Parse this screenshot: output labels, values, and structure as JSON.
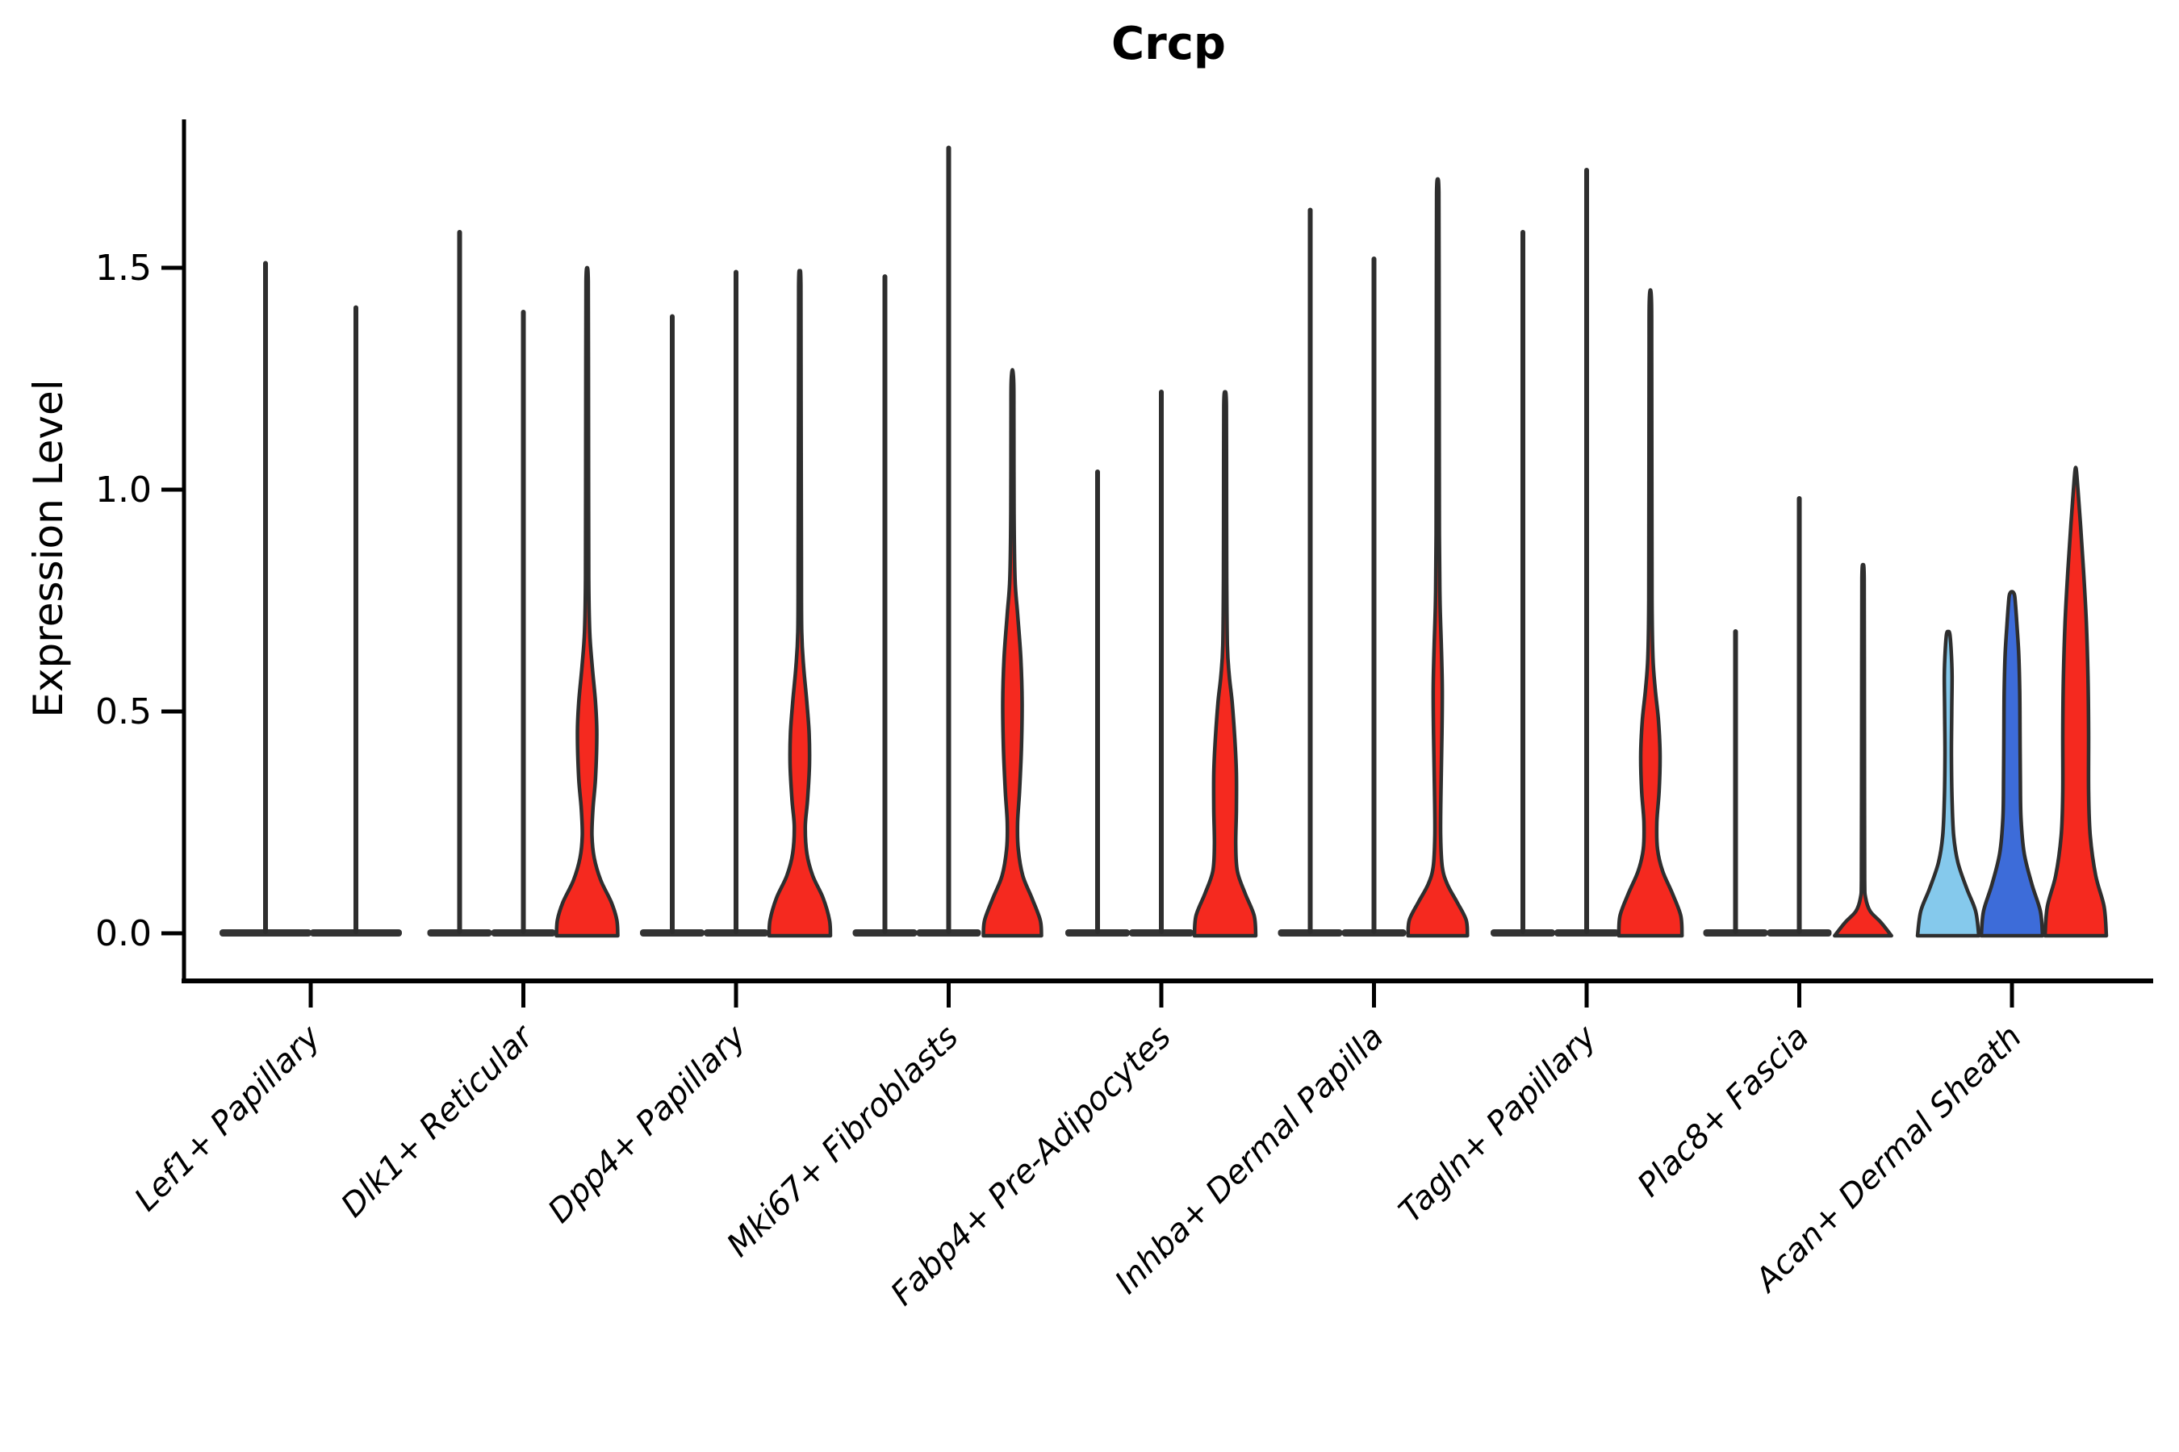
{
  "chart_data": {
    "type": "violin",
    "title": "Crcp",
    "ylabel": "Expression Level",
    "xlabel": "",
    "grid": false,
    "legend_position": "none",
    "ylim": [
      -0.105,
      1.835
    ],
    "y_ticks": [
      {
        "value": 0.0,
        "label": "0.0"
      },
      {
        "value": 0.5,
        "label": "0.5"
      },
      {
        "value": 1.0,
        "label": "1.0"
      },
      {
        "value": 1.5,
        "label": "1.5"
      }
    ],
    "colors": {
      "light_blue": "#85C9EC",
      "blue": "#3D6CD9",
      "red": "#F5291F",
      "outline": "#2E2E2E",
      "axis": "#000000"
    },
    "categories": [
      {
        "label": "Lef1+ Papillary",
        "violins": [
          {
            "group": "light_blue",
            "shape": "line",
            "max": 1.51
          },
          {
            "group": "blue",
            "shape": "line",
            "max": 1.41
          }
        ]
      },
      {
        "label": "Dlk1+ Reticular",
        "violins": [
          {
            "group": "light_blue",
            "shape": "line",
            "max": 1.58
          },
          {
            "group": "blue",
            "shape": "line",
            "max": 1.4
          },
          {
            "group": "red",
            "shape": "curve",
            "max": 1.5,
            "profile": [
              [
                0,
                0.95
              ],
              [
                0.03,
                0.92
              ],
              [
                0.07,
                0.75
              ],
              [
                0.12,
                0.42
              ],
              [
                0.17,
                0.22
              ],
              [
                0.22,
                0.15
              ],
              [
                0.28,
                0.18
              ],
              [
                0.35,
                0.26
              ],
              [
                0.45,
                0.3
              ],
              [
                0.52,
                0.26
              ],
              [
                0.6,
                0.16
              ],
              [
                0.68,
                0.08
              ],
              [
                0.8,
                0.05
              ],
              [
                1.0,
                0.045
              ],
              [
                1.3,
                0.04
              ],
              [
                1.47,
                0.035
              ],
              [
                1.5,
                0
              ]
            ]
          }
        ]
      },
      {
        "label": "Dpp4+ Papillary",
        "violins": [
          {
            "group": "light_blue",
            "shape": "line",
            "max": 1.39
          },
          {
            "group": "blue",
            "shape": "line",
            "max": 1.49
          },
          {
            "group": "red",
            "shape": "curve",
            "max": 1.49,
            "profile": [
              [
                0,
                0.95
              ],
              [
                0.03,
                0.92
              ],
              [
                0.08,
                0.72
              ],
              [
                0.13,
                0.4
              ],
              [
                0.18,
                0.22
              ],
              [
                0.24,
                0.17
              ],
              [
                0.3,
                0.24
              ],
              [
                0.38,
                0.3
              ],
              [
                0.45,
                0.29
              ],
              [
                0.52,
                0.22
              ],
              [
                0.6,
                0.12
              ],
              [
                0.68,
                0.06
              ],
              [
                0.85,
                0.05
              ],
              [
                1.2,
                0.04
              ],
              [
                1.46,
                0.035
              ],
              [
                1.49,
                0
              ]
            ]
          }
        ]
      },
      {
        "label": "Mki67+ Fibroblasts",
        "violins": [
          {
            "group": "light_blue",
            "shape": "line",
            "max": 1.48
          },
          {
            "group": "blue",
            "shape": "line",
            "max": 1.77
          },
          {
            "group": "red",
            "shape": "curve",
            "max": 1.27,
            "profile": [
              [
                0,
                0.9
              ],
              [
                0.03,
                0.86
              ],
              [
                0.08,
                0.6
              ],
              [
                0.13,
                0.32
              ],
              [
                0.19,
                0.18
              ],
              [
                0.25,
                0.16
              ],
              [
                0.32,
                0.22
              ],
              [
                0.42,
                0.28
              ],
              [
                0.52,
                0.3
              ],
              [
                0.62,
                0.26
              ],
              [
                0.72,
                0.16
              ],
              [
                0.8,
                0.08
              ],
              [
                0.95,
                0.05
              ],
              [
                1.15,
                0.045
              ],
              [
                1.24,
                0.04
              ],
              [
                1.27,
                0
              ]
            ]
          }
        ]
      },
      {
        "label": "Fabp4+ Pre-Adipocytes",
        "violins": [
          {
            "group": "light_blue",
            "shape": "line",
            "max": 1.04
          },
          {
            "group": "blue",
            "shape": "line",
            "max": 1.22
          },
          {
            "group": "red",
            "shape": "curve",
            "max": 1.22,
            "profile": [
              [
                0,
                0.95
              ],
              [
                0.04,
                0.9
              ],
              [
                0.09,
                0.62
              ],
              [
                0.14,
                0.38
              ],
              [
                0.2,
                0.33
              ],
              [
                0.28,
                0.35
              ],
              [
                0.36,
                0.35
              ],
              [
                0.44,
                0.3
              ],
              [
                0.52,
                0.22
              ],
              [
                0.58,
                0.13
              ],
              [
                0.65,
                0.07
              ],
              [
                0.8,
                0.05
              ],
              [
                1.0,
                0.045
              ],
              [
                1.19,
                0.04
              ],
              [
                1.22,
                0
              ]
            ]
          }
        ]
      },
      {
        "label": "Inhba+ Dermal Papilla",
        "violins": [
          {
            "group": "light_blue",
            "shape": "line",
            "max": 1.63
          },
          {
            "group": "blue",
            "shape": "line",
            "max": 1.52
          },
          {
            "group": "red",
            "shape": "curve",
            "max": 1.7,
            "profile": [
              [
                0,
                0.92
              ],
              [
                0.03,
                0.88
              ],
              [
                0.07,
                0.6
              ],
              [
                0.11,
                0.3
              ],
              [
                0.15,
                0.14
              ],
              [
                0.22,
                0.09
              ],
              [
                0.32,
                0.1
              ],
              [
                0.45,
                0.13
              ],
              [
                0.55,
                0.14
              ],
              [
                0.65,
                0.11
              ],
              [
                0.75,
                0.07
              ],
              [
                0.9,
                0.05
              ],
              [
                1.2,
                0.045
              ],
              [
                1.5,
                0.04
              ],
              [
                1.67,
                0.035
              ],
              [
                1.7,
                0
              ]
            ]
          }
        ]
      },
      {
        "label": "Tagln+ Papillary",
        "violins": [
          {
            "group": "light_blue",
            "shape": "line",
            "max": 1.58
          },
          {
            "group": "blue",
            "shape": "line",
            "max": 1.72
          },
          {
            "group": "red",
            "shape": "curve",
            "max": 1.45,
            "profile": [
              [
                0,
                0.98
              ],
              [
                0.04,
                0.94
              ],
              [
                0.09,
                0.68
              ],
              [
                0.14,
                0.38
              ],
              [
                0.19,
                0.22
              ],
              [
                0.25,
                0.2
              ],
              [
                0.32,
                0.27
              ],
              [
                0.4,
                0.3
              ],
              [
                0.48,
                0.25
              ],
              [
                0.55,
                0.15
              ],
              [
                0.62,
                0.08
              ],
              [
                0.75,
                0.05
              ],
              [
                1.0,
                0.045
              ],
              [
                1.3,
                0.04
              ],
              [
                1.42,
                0.035
              ],
              [
                1.45,
                0
              ]
            ]
          }
        ]
      },
      {
        "label": "Plac8+ Fascia",
        "violins": [
          {
            "group": "light_blue",
            "shape": "line",
            "max": 0.68
          },
          {
            "group": "blue",
            "shape": "line",
            "max": 0.98
          },
          {
            "group": "red",
            "shape": "curve",
            "max": 0.83,
            "profile": [
              [
                0,
                0.88
              ],
              [
                0.025,
                0.55
              ],
              [
                0.05,
                0.22
              ],
              [
                0.08,
                0.08
              ],
              [
                0.12,
                0.05
              ],
              [
                0.3,
                0.045
              ],
              [
                0.6,
                0.04
              ],
              [
                0.8,
                0.035
              ],
              [
                0.83,
                0
              ]
            ]
          }
        ]
      },
      {
        "label": "Acan+ Dermal Sheath",
        "violins": [
          {
            "group": "light_blue",
            "shape": "curve",
            "max": 0.68,
            "profile": [
              [
                0,
                0.95
              ],
              [
                0.05,
                0.85
              ],
              [
                0.1,
                0.58
              ],
              [
                0.16,
                0.3
              ],
              [
                0.22,
                0.17
              ],
              [
                0.3,
                0.12
              ],
              [
                0.4,
                0.1
              ],
              [
                0.5,
                0.11
              ],
              [
                0.58,
                0.12
              ],
              [
                0.64,
                0.09
              ],
              [
                0.675,
                0.05
              ],
              [
                0.68,
                0
              ]
            ]
          },
          {
            "group": "blue",
            "shape": "curve",
            "max": 0.77,
            "profile": [
              [
                0,
                0.95
              ],
              [
                0.05,
                0.88
              ],
              [
                0.11,
                0.62
              ],
              [
                0.18,
                0.38
              ],
              [
                0.26,
                0.28
              ],
              [
                0.35,
                0.26
              ],
              [
                0.45,
                0.25
              ],
              [
                0.55,
                0.24
              ],
              [
                0.63,
                0.21
              ],
              [
                0.7,
                0.15
              ],
              [
                0.75,
                0.1
              ],
              [
                0.765,
                0.07
              ],
              [
                0.77,
                0
              ]
            ]
          },
          {
            "group": "red",
            "shape": "curve",
            "max": 1.05,
            "profile": [
              [
                0,
                0.95
              ],
              [
                0.06,
                0.88
              ],
              [
                0.13,
                0.62
              ],
              [
                0.22,
                0.45
              ],
              [
                0.32,
                0.4
              ],
              [
                0.45,
                0.4
              ],
              [
                0.58,
                0.38
              ],
              [
                0.7,
                0.33
              ],
              [
                0.82,
                0.24
              ],
              [
                0.92,
                0.15
              ],
              [
                1.0,
                0.07
              ],
              [
                1.05,
                0
              ]
            ]
          }
        ]
      }
    ]
  }
}
